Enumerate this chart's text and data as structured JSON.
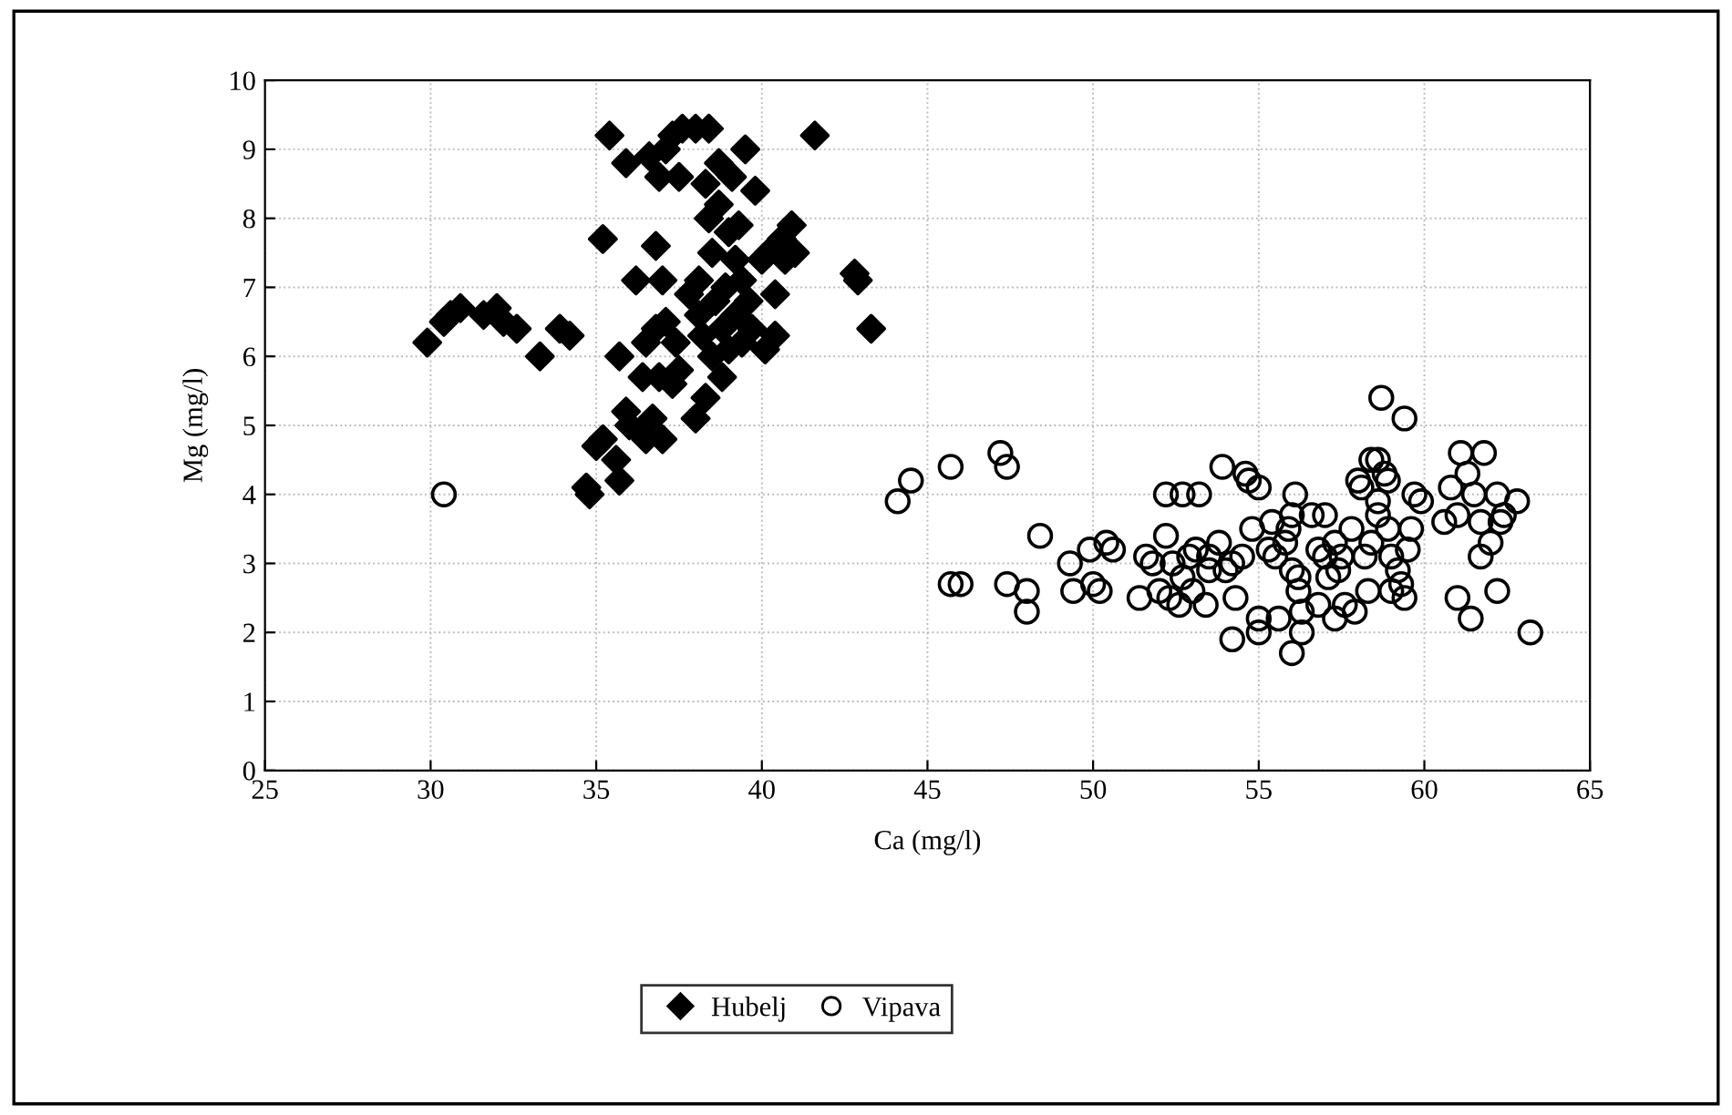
{
  "chart_data": {
    "type": "scatter",
    "xlabel": "Ca (mg/l)",
    "ylabel": "Mg (mg/l)",
    "xlim": [
      25,
      65
    ],
    "xticks": [
      25,
      30,
      35,
      40,
      45,
      50,
      55,
      60,
      65
    ],
    "ylim": [
      0,
      10
    ],
    "yticks": [
      0,
      1,
      2,
      3,
      4,
      5,
      6,
      7,
      8,
      9,
      10
    ],
    "grid": true,
    "legend": "bottom",
    "series": [
      {
        "name": "Hubelj",
        "color": "#000000",
        "marker": "diamond",
        "x": [
          29.9,
          30.4,
          30.6,
          30.9,
          31.6,
          32.0,
          32.2,
          32.6,
          33.3,
          33.9,
          34.2,
          34.7,
          34.8,
          35.0,
          35.2,
          35.2,
          35.4,
          35.6,
          35.7,
          35.7,
          35.9,
          35.9,
          36.0,
          36.2,
          36.4,
          36.5,
          36.5,
          36.6,
          36.7,
          36.8,
          36.8,
          36.9,
          36.9,
          37.0,
          37.0,
          37.1,
          37.1,
          37.3,
          37.3,
          37.4,
          37.5,
          37.5,
          37.6,
          37.8,
          38.0,
          38.0,
          38.1,
          38.1,
          38.2,
          38.3,
          38.3,
          38.4,
          38.4,
          38.5,
          38.5,
          38.6,
          38.7,
          38.7,
          38.8,
          38.8,
          38.9,
          39.0,
          39.0,
          39.1,
          39.2,
          39.2,
          39.3,
          39.4,
          39.4,
          39.5,
          39.6,
          39.7,
          39.8,
          40.0,
          40.1,
          40.2,
          40.4,
          40.4,
          40.6,
          40.7,
          40.9,
          41.0,
          41.6,
          42.8,
          42.9,
          43.3
        ],
        "values": [
          6.2,
          6.5,
          6.6,
          6.7,
          6.6,
          6.7,
          6.5,
          6.4,
          6.0,
          6.4,
          6.3,
          4.1,
          4.0,
          4.7,
          4.8,
          7.7,
          9.2,
          4.5,
          6.0,
          4.2,
          5.2,
          8.8,
          5.0,
          7.1,
          5.7,
          4.8,
          6.2,
          8.9,
          5.1,
          7.6,
          6.4,
          5.7,
          8.6,
          4.8,
          7.1,
          6.5,
          9.0,
          5.6,
          9.2,
          6.2,
          8.6,
          5.8,
          9.3,
          6.9,
          9.3,
          5.1,
          6.6,
          7.1,
          6.3,
          8.5,
          5.4,
          8.0,
          9.3,
          6.0,
          7.5,
          6.8,
          8.8,
          8.2,
          5.7,
          6.4,
          7.0,
          7.8,
          6.1,
          8.6,
          6.6,
          7.4,
          7.9,
          6.2,
          7.1,
          9.0,
          6.8,
          6.4,
          8.4,
          7.4,
          6.1,
          7.5,
          6.3,
          6.9,
          7.7,
          7.4,
          7.9,
          7.5,
          9.2,
          7.2,
          7.1,
          6.4
        ]
      },
      {
        "name": "Vipava",
        "color": "#000000",
        "marker": "circle",
        "x": [
          30.4,
          44.1,
          44.5,
          45.7,
          45.7,
          46.0,
          47.2,
          47.4,
          47.4,
          48.0,
          48.0,
          48.4,
          49.3,
          49.4,
          49.9,
          50.0,
          50.2,
          50.4,
          50.6,
          51.4,
          51.6,
          51.8,
          52.0,
          52.2,
          52.2,
          52.3,
          52.4,
          52.6,
          52.7,
          52.7,
          52.9,
          53.0,
          53.1,
          53.2,
          53.4,
          53.5,
          53.5,
          53.8,
          53.9,
          54.0,
          54.2,
          54.2,
          54.3,
          54.5,
          54.6,
          54.7,
          54.8,
          55.0,
          55.0,
          55.0,
          55.3,
          55.4,
          55.5,
          55.6,
          55.8,
          55.9,
          56.0,
          56.0,
          56.0,
          56.1,
          56.2,
          56.2,
          56.3,
          56.3,
          56.6,
          56.8,
          56.8,
          57.0,
          57.0,
          57.1,
          57.3,
          57.3,
          57.4,
          57.5,
          57.6,
          57.8,
          57.9,
          58.0,
          58.1,
          58.2,
          58.3,
          58.4,
          58.4,
          58.6,
          58.6,
          58.6,
          58.7,
          58.8,
          58.9,
          58.9,
          59.0,
          59.0,
          59.2,
          59.3,
          59.4,
          59.4,
          59.5,
          59.6,
          59.7,
          59.9,
          60.6,
          60.8,
          61.0,
          61.0,
          61.1,
          61.3,
          61.4,
          61.5,
          61.7,
          61.7,
          61.8,
          62.0,
          62.2,
          62.2,
          62.3,
          62.4,
          62.8,
          63.2
        ],
        "values": [
          4.0,
          3.9,
          4.2,
          4.4,
          2.7,
          2.7,
          4.6,
          4.4,
          2.7,
          2.6,
          2.3,
          3.4,
          3.0,
          2.6,
          3.2,
          2.7,
          2.6,
          3.3,
          3.2,
          2.5,
          3.1,
          3.0,
          2.6,
          3.4,
          4.0,
          2.5,
          3.0,
          2.4,
          2.8,
          4.0,
          3.1,
          2.6,
          3.2,
          4.0,
          2.4,
          2.9,
          3.1,
          3.3,
          4.4,
          2.9,
          3.0,
          1.9,
          2.5,
          3.1,
          4.3,
          4.2,
          3.5,
          4.1,
          2.2,
          2.0,
          3.2,
          3.6,
          3.1,
          2.2,
          3.3,
          3.5,
          1.7,
          2.9,
          3.7,
          4.0,
          2.8,
          2.6,
          2.3,
          2.0,
          3.7,
          2.4,
          3.2,
          3.7,
          3.1,
          2.8,
          2.2,
          3.3,
          2.9,
          3.1,
          2.4,
          3.5,
          2.3,
          4.2,
          4.1,
          3.1,
          2.6,
          3.3,
          4.5,
          4.5,
          3.7,
          3.9,
          5.4,
          4.3,
          4.2,
          3.5,
          3.1,
          2.6,
          2.9,
          2.7,
          5.1,
          2.5,
          3.2,
          3.5,
          4.0,
          3.9,
          3.6,
          4.1,
          3.7,
          2.5,
          4.6,
          4.3,
          2.2,
          4.0,
          3.6,
          3.1,
          4.6,
          3.3,
          4.0,
          2.6,
          3.6,
          3.7,
          3.9,
          2.0
        ]
      }
    ]
  }
}
